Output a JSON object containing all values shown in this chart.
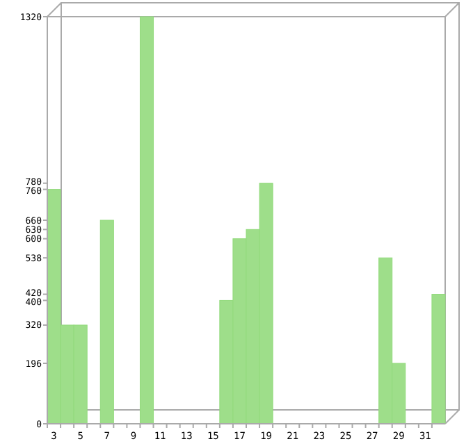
{
  "chart_data": {
    "type": "bar",
    "categories": [
      "3",
      null,
      "5",
      null,
      "7",
      null,
      "9",
      null,
      "11",
      null,
      "13",
      null,
      "15",
      null,
      "17",
      null,
      "19",
      null,
      "21",
      null,
      "23",
      null,
      "25",
      null,
      "27",
      null,
      "29",
      null,
      "31",
      null
    ],
    "values": [
      760,
      320,
      320,
      0,
      660,
      0,
      0,
      1320,
      0,
      0,
      0,
      0,
      0,
      400,
      600,
      630,
      780,
      0,
      0,
      0,
      0,
      0,
      0,
      0,
      0,
      538,
      196,
      0,
      0,
      420
    ],
    "color": "#9ede8a",
    "ylim": [
      0,
      1320
    ],
    "yticks": [
      0,
      196,
      320,
      400,
      420,
      538,
      600,
      630,
      660,
      760,
      780,
      1320
    ],
    "grid": false
  }
}
